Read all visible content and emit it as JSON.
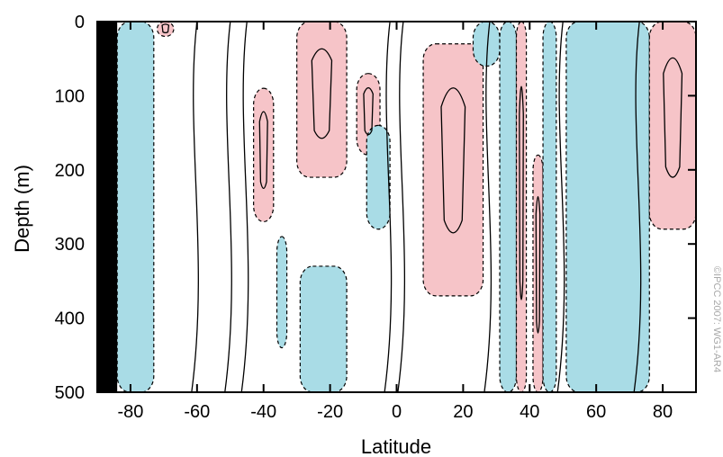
{
  "chart_data": {
    "type": "contour",
    "title": "",
    "xlabel": "Latitude",
    "ylabel": "Depth (m)",
    "xlim": [
      -90,
      90
    ],
    "ylim": [
      0,
      500
    ],
    "y_inverted": true,
    "x_ticks": [
      -80,
      -60,
      -40,
      -20,
      0,
      20,
      40,
      60,
      80
    ],
    "x_tick_labels": [
      "-80",
      "-60",
      "-40",
      "-20",
      "0",
      "20",
      "40",
      "60",
      "80"
    ],
    "y_ticks": [
      0,
      100,
      200,
      300,
      400,
      500
    ],
    "y_tick_labels": [
      "0",
      "100",
      "200",
      "300",
      "400",
      "500"
    ],
    "colors": {
      "positive_fill": "#f6c4c8",
      "negative_fill": "#a9dce6",
      "land_mask": "#000000",
      "contour_line": "#000000"
    },
    "contour_styles": {
      "positive": "solid",
      "negative": "dashed"
    },
    "land_mask_latitude_range": [
      -90,
      -84
    ],
    "regions": [
      {
        "sign": "negative",
        "depth_range": [
          0,
          500
        ],
        "lat_range": [
          -84,
          -73
        ]
      },
      {
        "sign": "positive",
        "depth_range": [
          0,
          20
        ],
        "lat_range": [
          -72,
          -67
        ]
      },
      {
        "sign": "positive",
        "depth_range": [
          90,
          270
        ],
        "lat_range": [
          -43,
          -37
        ]
      },
      {
        "sign": "positive",
        "depth_range": [
          0,
          210
        ],
        "lat_range": [
          -30,
          -15
        ]
      },
      {
        "sign": "positive",
        "depth_range": [
          70,
          180
        ],
        "lat_range": [
          -12,
          -5
        ]
      },
      {
        "sign": "negative",
        "depth_range": [
          140,
          280
        ],
        "lat_range": [
          -9,
          -2
        ]
      },
      {
        "sign": "negative",
        "depth_range": [
          290,
          440
        ],
        "lat_range": [
          -36,
          -33
        ]
      },
      {
        "sign": "negative",
        "depth_range": [
          330,
          500
        ],
        "lat_range": [
          -29,
          -15
        ]
      },
      {
        "sign": "positive",
        "depth_range": [
          30,
          370
        ],
        "lat_range": [
          8,
          26
        ]
      },
      {
        "sign": "negative",
        "depth_range": [
          0,
          60
        ],
        "lat_range": [
          23,
          31
        ]
      },
      {
        "sign": "negative",
        "depth_range": [
          0,
          500
        ],
        "lat_range": [
          31,
          36
        ]
      },
      {
        "sign": "positive",
        "depth_range": [
          0,
          500
        ],
        "lat_range": [
          36,
          39
        ]
      },
      {
        "sign": "positive",
        "depth_range": [
          180,
          500
        ],
        "lat_range": [
          41,
          44
        ]
      },
      {
        "sign": "negative",
        "depth_range": [
          0,
          500
        ],
        "lat_range": [
          44,
          48
        ]
      },
      {
        "sign": "negative",
        "depth_range": [
          0,
          500
        ],
        "lat_range": [
          51,
          76
        ]
      },
      {
        "sign": "positive",
        "depth_range": [
          0,
          280
        ],
        "lat_range": [
          76,
          90
        ]
      }
    ],
    "credit_text": "©IPCC 2007: WG1-AR4"
  }
}
